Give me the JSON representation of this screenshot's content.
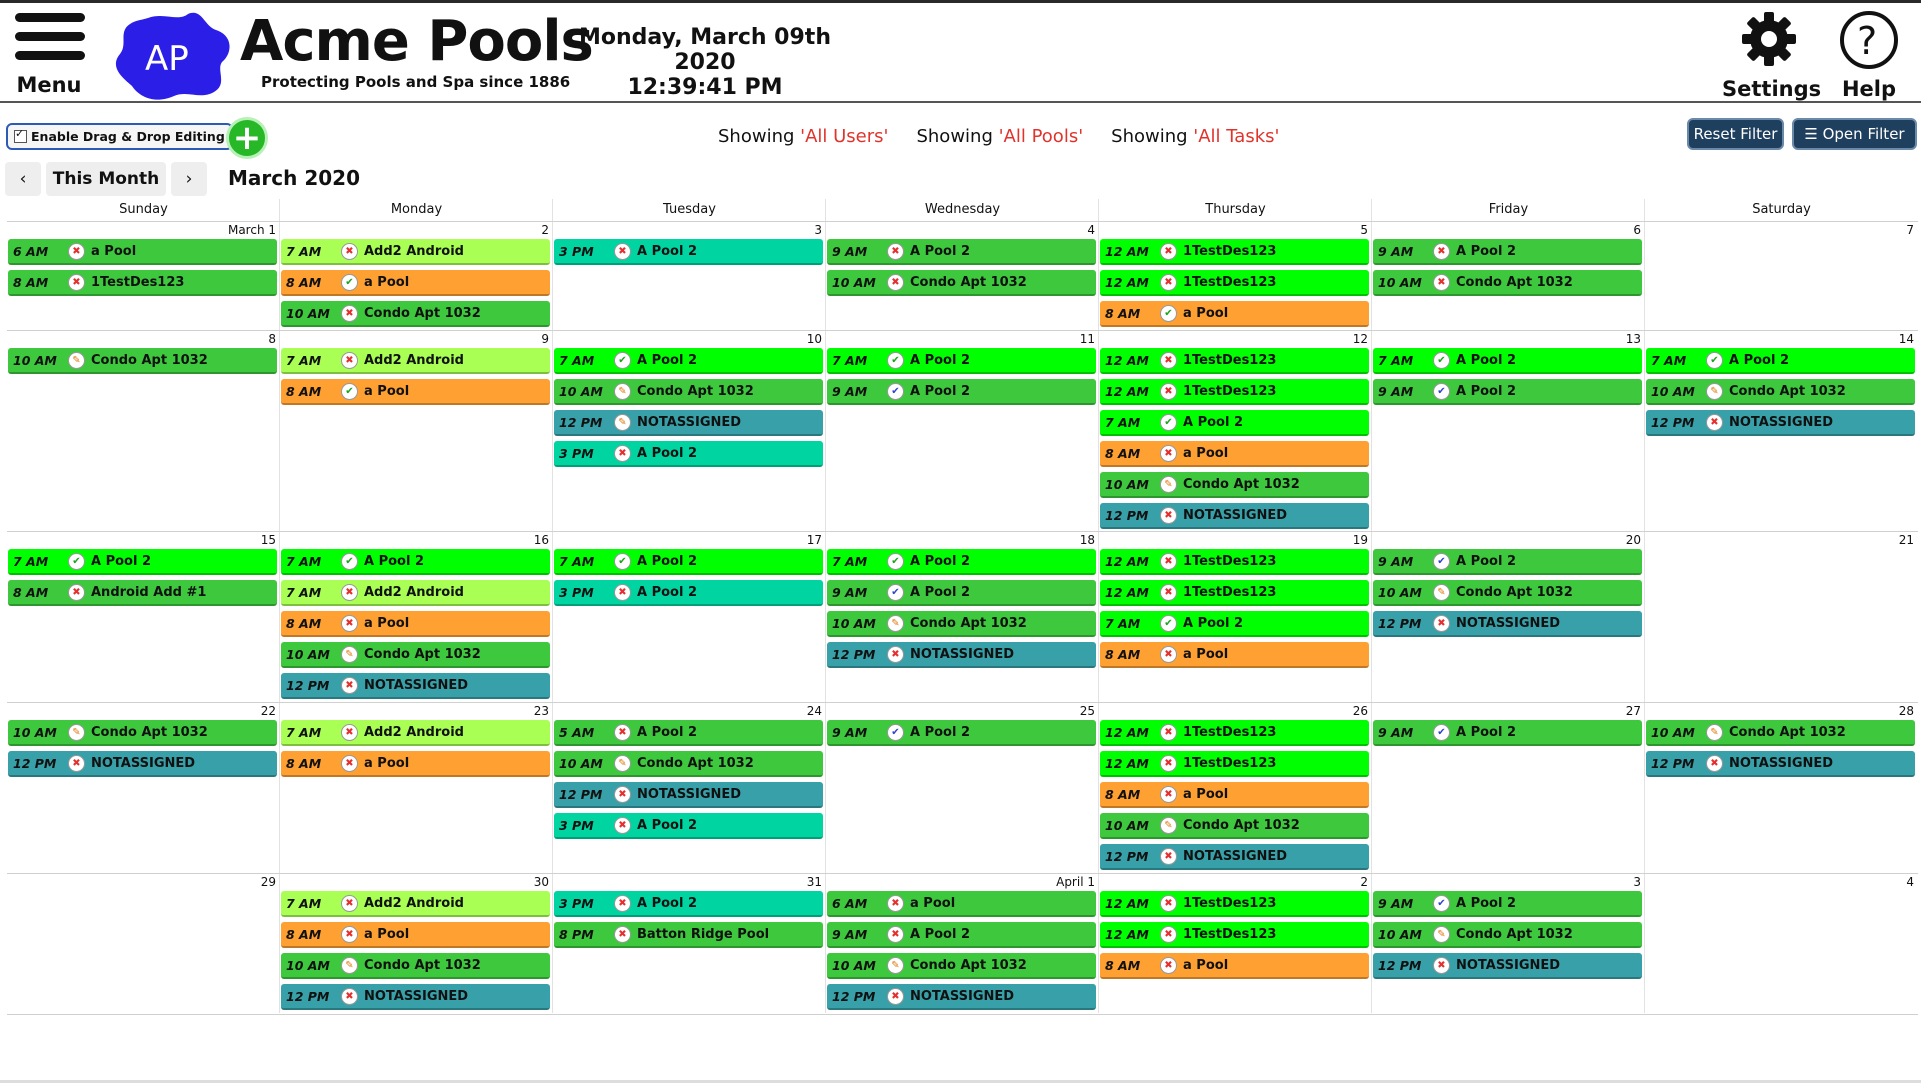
{
  "header": {
    "menu_label": "Menu",
    "logo_text": "AP",
    "brand_name": "Acme Pools",
    "brand_tagline": "Protecting Pools and Spa since 1886",
    "date": "Monday, March 09th 2020",
    "time": "12:39:41 PM",
    "settings_label": "Settings",
    "help_label": "Help"
  },
  "toolbar": {
    "dnd_label": "Enable Drag & Drop Editing",
    "add_label": "+",
    "filters": [
      {
        "prefix": "Showing ",
        "value": "'All Users'"
      },
      {
        "prefix": "Showing ",
        "value": "'All Pools'"
      },
      {
        "prefix": "Showing ",
        "value": "'All Tasks'"
      }
    ],
    "reset_label": "Reset Filter",
    "open_label": "☰ Open Filter"
  },
  "nav": {
    "prev": "‹",
    "this_month": "This Month",
    "next": "›",
    "month_title": "March 2020"
  },
  "colors": {
    "green": "#3ec83e",
    "bright": "#00ff00",
    "lime": "#aaff55",
    "orange": "#ffa033",
    "teal": "#38a0a8",
    "cyan": "#00d4a0"
  },
  "calendar": {
    "weekdays": [
      "Sunday",
      "Monday",
      "Tuesday",
      "Wednesday",
      "Thursday",
      "Friday",
      "Saturday"
    ],
    "weeks": [
      {
        "days": [
          {
            "n": "March 1",
            "ev": [
              [
                "6 AM",
                "a Pool",
                "green",
                "x"
              ],
              [
                "8 AM",
                "1TestDes123",
                "green",
                "x"
              ]
            ]
          },
          {
            "n": "2",
            "ev": [
              [
                "7 AM",
                "Add2 Android",
                "lime",
                "x"
              ],
              [
                "8 AM",
                "a Pool",
                "orange",
                "ok"
              ],
              [
                "10 AM",
                "Condo Apt 1032",
                "green",
                "x"
              ]
            ]
          },
          {
            "n": "3",
            "ev": [
              [
                "3 PM",
                "A Pool 2",
                "cyan",
                "x"
              ]
            ]
          },
          {
            "n": "4",
            "ev": [
              [
                "9 AM",
                "A Pool 2",
                "green",
                "x"
              ],
              [
                "10 AM",
                "Condo Apt 1032",
                "green",
                "x"
              ]
            ]
          },
          {
            "n": "5",
            "ev": [
              [
                "12 AM",
                "1TestDes123",
                "bright",
                "x"
              ],
              [
                "12 AM",
                "1TestDes123",
                "bright",
                "x"
              ],
              [
                "8 AM",
                "a Pool",
                "orange",
                "ok"
              ]
            ]
          },
          {
            "n": "6",
            "ev": [
              [
                "9 AM",
                "A Pool 2",
                "green",
                "x"
              ],
              [
                "10 AM",
                "Condo Apt 1032",
                "green",
                "x"
              ]
            ]
          },
          {
            "n": "7",
            "ev": []
          }
        ]
      },
      {
        "days": [
          {
            "n": "8",
            "ev": [
              [
                "10 AM",
                "Condo Apt 1032",
                "green",
                "o"
              ]
            ]
          },
          {
            "n": "9",
            "ev": [
              [
                "7 AM",
                "Add2 Android",
                "lime",
                "x"
              ],
              [
                "8 AM",
                "a Pool",
                "orange",
                "ok"
              ]
            ]
          },
          {
            "n": "10",
            "ev": [
              [
                "7 AM",
                "A Pool 2",
                "bright",
                "ok"
              ],
              [
                "10 AM",
                "Condo Apt 1032",
                "green",
                "o"
              ],
              [
                "12 PM",
                "NOTASSIGNED",
                "teal",
                "o"
              ],
              [
                "3 PM",
                "A Pool 2",
                "cyan",
                "x"
              ]
            ]
          },
          {
            "n": "11",
            "ev": [
              [
                "7 AM",
                "A Pool 2",
                "bright",
                "ok"
              ],
              [
                "9 AM",
                "A Pool 2",
                "green",
                "b"
              ]
            ]
          },
          {
            "n": "12",
            "ev": [
              [
                "12 AM",
                "1TestDes123",
                "bright",
                "x"
              ],
              [
                "12 AM",
                "1TestDes123",
                "bright",
                "x"
              ],
              [
                "7 AM",
                "A Pool 2",
                "bright",
                "ok"
              ],
              [
                "8 AM",
                "a Pool",
                "orange",
                "x"
              ],
              [
                "10 AM",
                "Condo Apt 1032",
                "green",
                "o"
              ],
              [
                "12 PM",
                "NOTASSIGNED",
                "teal",
                "x"
              ]
            ]
          },
          {
            "n": "13",
            "ev": [
              [
                "7 AM",
                "A Pool 2",
                "bright",
                "ok"
              ],
              [
                "9 AM",
                "A Pool 2",
                "green",
                "b"
              ]
            ]
          },
          {
            "n": "14",
            "ev": [
              [
                "7 AM",
                "A Pool 2",
                "bright",
                "ok"
              ],
              [
                "10 AM",
                "Condo Apt 1032",
                "green",
                "o"
              ],
              [
                "12 PM",
                "NOTASSIGNED",
                "teal",
                "x"
              ]
            ]
          }
        ]
      },
      {
        "days": [
          {
            "n": "15",
            "ev": [
              [
                "7 AM",
                "A Pool 2",
                "bright",
                "ok"
              ],
              [
                "8 AM",
                "Android Add #1",
                "green",
                "x"
              ]
            ]
          },
          {
            "n": "16",
            "ev": [
              [
                "7 AM",
                "A Pool 2",
                "bright",
                "ok"
              ],
              [
                "7 AM",
                "Add2 Android",
                "lime",
                "x"
              ],
              [
                "8 AM",
                "a Pool",
                "orange",
                "x"
              ],
              [
                "10 AM",
                "Condo Apt 1032",
                "green",
                "o"
              ],
              [
                "12 PM",
                "NOTASSIGNED",
                "teal",
                "x"
              ]
            ]
          },
          {
            "n": "17",
            "ev": [
              [
                "7 AM",
                "A Pool 2",
                "bright",
                "ok"
              ],
              [
                "3 PM",
                "A Pool 2",
                "cyan",
                "x"
              ]
            ]
          },
          {
            "n": "18",
            "ev": [
              [
                "7 AM",
                "A Pool 2",
                "bright",
                "ok"
              ],
              [
                "9 AM",
                "A Pool 2",
                "green",
                "b"
              ],
              [
                "10 AM",
                "Condo Apt 1032",
                "green",
                "o"
              ],
              [
                "12 PM",
                "NOTASSIGNED",
                "teal",
                "x"
              ]
            ]
          },
          {
            "n": "19",
            "ev": [
              [
                "12 AM",
                "1TestDes123",
                "bright",
                "x"
              ],
              [
                "12 AM",
                "1TestDes123",
                "bright",
                "x"
              ],
              [
                "7 AM",
                "A Pool 2",
                "bright",
                "ok"
              ],
              [
                "8 AM",
                "a Pool",
                "orange",
                "x"
              ]
            ]
          },
          {
            "n": "20",
            "ev": [
              [
                "9 AM",
                "A Pool 2",
                "green",
                "b"
              ],
              [
                "10 AM",
                "Condo Apt 1032",
                "green",
                "o"
              ],
              [
                "12 PM",
                "NOTASSIGNED",
                "teal",
                "x"
              ]
            ]
          },
          {
            "n": "21",
            "ev": []
          }
        ]
      },
      {
        "days": [
          {
            "n": "22",
            "ev": [
              [
                "10 AM",
                "Condo Apt 1032",
                "green",
                "o"
              ],
              [
                "12 PM",
                "NOTASSIGNED",
                "teal",
                "x"
              ]
            ]
          },
          {
            "n": "23",
            "ev": [
              [
                "7 AM",
                "Add2 Android",
                "lime",
                "x"
              ],
              [
                "8 AM",
                "a Pool",
                "orange",
                "x"
              ]
            ]
          },
          {
            "n": "24",
            "ev": [
              [
                "5 AM",
                "A Pool 2",
                "green",
                "x"
              ],
              [
                "10 AM",
                "Condo Apt 1032",
                "green",
                "o"
              ],
              [
                "12 PM",
                "NOTASSIGNED",
                "teal",
                "x"
              ],
              [
                "3 PM",
                "A Pool 2",
                "cyan",
                "x"
              ]
            ]
          },
          {
            "n": "25",
            "ev": [
              [
                "9 AM",
                "A Pool 2",
                "green",
                "b"
              ]
            ]
          },
          {
            "n": "26",
            "ev": [
              [
                "12 AM",
                "1TestDes123",
                "bright",
                "x"
              ],
              [
                "12 AM",
                "1TestDes123",
                "bright",
                "x"
              ],
              [
                "8 AM",
                "a Pool",
                "orange",
                "x"
              ],
              [
                "10 AM",
                "Condo Apt 1032",
                "green",
                "o"
              ],
              [
                "12 PM",
                "NOTASSIGNED",
                "teal",
                "x"
              ]
            ]
          },
          {
            "n": "27",
            "ev": [
              [
                "9 AM",
                "A Pool 2",
                "green",
                "b"
              ]
            ]
          },
          {
            "n": "28",
            "ev": [
              [
                "10 AM",
                "Condo Apt 1032",
                "green",
                "o"
              ],
              [
                "12 PM",
                "NOTASSIGNED",
                "teal",
                "x"
              ]
            ]
          }
        ]
      },
      {
        "days": [
          {
            "n": "29",
            "ev": []
          },
          {
            "n": "30",
            "ev": [
              [
                "7 AM",
                "Add2 Android",
                "lime",
                "x"
              ],
              [
                "8 AM",
                "a Pool",
                "orange",
                "x"
              ],
              [
                "10 AM",
                "Condo Apt 1032",
                "green",
                "o"
              ],
              [
                "12 PM",
                "NOTASSIGNED",
                "teal",
                "x"
              ]
            ]
          },
          {
            "n": "31",
            "ev": [
              [
                "3 PM",
                "A Pool 2",
                "cyan",
                "x"
              ],
              [
                "8 PM",
                "Batton Ridge Pool",
                "green",
                "x"
              ]
            ]
          },
          {
            "n": "April 1",
            "ev": [
              [
                "6 AM",
                "a Pool",
                "green",
                "x"
              ],
              [
                "9 AM",
                "A Pool 2",
                "green",
                "x"
              ],
              [
                "10 AM",
                "Condo Apt 1032",
                "green",
                "o"
              ],
              [
                "12 PM",
                "NOTASSIGNED",
                "teal",
                "x"
              ]
            ]
          },
          {
            "n": "2",
            "ev": [
              [
                "12 AM",
                "1TestDes123",
                "bright",
                "x"
              ],
              [
                "12 AM",
                "1TestDes123",
                "bright",
                "x"
              ],
              [
                "8 AM",
                "a Pool",
                "orange",
                "x"
              ]
            ]
          },
          {
            "n": "3",
            "ev": [
              [
                "9 AM",
                "A Pool 2",
                "green",
                "b"
              ],
              [
                "10 AM",
                "Condo Apt 1032",
                "green",
                "o"
              ],
              [
                "12 PM",
                "NOTASSIGNED",
                "teal",
                "x"
              ]
            ]
          },
          {
            "n": "4",
            "ev": []
          }
        ]
      }
    ]
  }
}
